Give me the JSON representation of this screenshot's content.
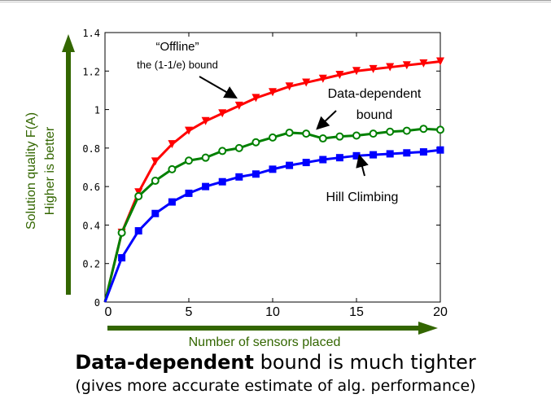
{
  "chart_data": {
    "type": "line",
    "xlabel": "Number of sensors placed",
    "ylabel": "Solution quality F(A)",
    "ylabel2": "Higher is better",
    "xlim": [
      0,
      20
    ],
    "ylim": [
      0,
      1.4
    ],
    "xticks": [
      "0",
      "5",
      "10",
      "15",
      "20"
    ],
    "yticks": [
      "0",
      "0.2",
      "0.4",
      "0.6",
      "0.8",
      "1",
      "1.2",
      "1.4"
    ],
    "grid": false,
    "x": [
      0,
      1,
      2,
      3,
      4,
      5,
      6,
      7,
      8,
      9,
      10,
      11,
      12,
      13,
      14,
      15,
      16,
      17,
      18,
      19,
      20
    ],
    "series": [
      {
        "name": "“Offline” the (1-1/e) bound",
        "color": "#ff0000",
        "marker": "triangle-down",
        "values": [
          0.0,
          0.36,
          0.57,
          0.73,
          0.82,
          0.89,
          0.94,
          0.98,
          1.02,
          1.06,
          1.09,
          1.12,
          1.14,
          1.16,
          1.18,
          1.2,
          1.21,
          1.22,
          1.23,
          1.24,
          1.25
        ]
      },
      {
        "name": "Data-dependent bound",
        "color": "#008000",
        "marker": "circle-open",
        "values": [
          0.0,
          0.36,
          0.55,
          0.63,
          0.69,
          0.735,
          0.75,
          0.785,
          0.8,
          0.83,
          0.855,
          0.88,
          0.875,
          0.85,
          0.86,
          0.865,
          0.875,
          0.885,
          0.89,
          0.9,
          0.895
        ]
      },
      {
        "name": "Hill Climbing",
        "color": "#0000ff",
        "marker": "square",
        "values": [
          0.0,
          0.23,
          0.37,
          0.46,
          0.52,
          0.565,
          0.6,
          0.625,
          0.65,
          0.665,
          0.69,
          0.71,
          0.725,
          0.74,
          0.75,
          0.76,
          0.765,
          0.77,
          0.775,
          0.78,
          0.79
        ]
      }
    ],
    "annotations": {
      "offline_line1": "“Offline”",
      "offline_line2": "the (1-1/e) bound",
      "datadep_line1": "Data-dependent",
      "datadep_line2": "bound",
      "hill": "Hill Climbing"
    }
  },
  "caption": {
    "bold": "Data-dependent",
    "rest": " bound is much tighter",
    "sub": "(gives more accurate estimate of alg. performance)"
  },
  "colors": {
    "axis_arrow": "#336600",
    "ylabel_color": "#336600"
  }
}
